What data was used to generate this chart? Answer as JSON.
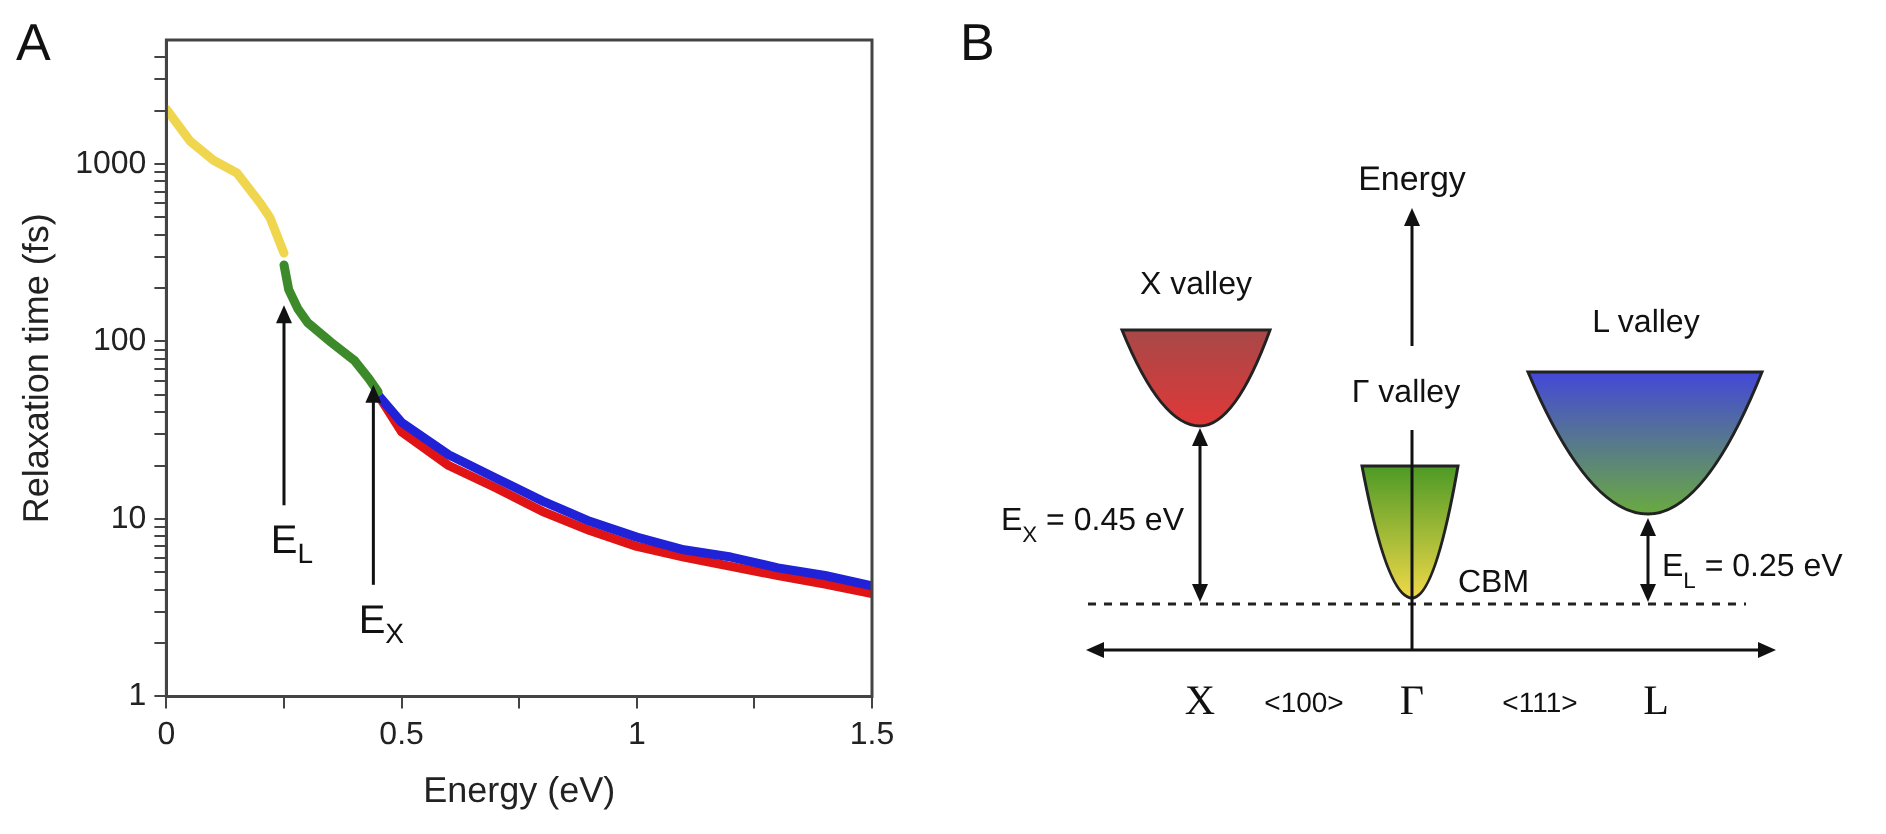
{
  "chart_data": [
    {
      "type": "line",
      "xlabel": "Energy (eV)",
      "ylabel": "Relaxation time (fs)",
      "log": "y",
      "grid": false,
      "legend": false,
      "xlim": [
        0,
        1.5
      ],
      "xticks": [
        0,
        {
          "value": 0.25,
          "label": null
        },
        0.5,
        {
          "value": 0.75,
          "label": null
        },
        1,
        {
          "value": 1.25,
          "label": null
        },
        1.5
      ],
      "ylim": [
        1,
        5000
      ],
      "yticks": [
        1,
        {
          "value": 2,
          "label": null
        },
        {
          "value": 3,
          "label": null
        },
        {
          "value": 4,
          "label": null
        },
        {
          "value": 5,
          "label": null
        },
        {
          "value": 6,
          "label": null
        },
        {
          "value": 7,
          "label": null
        },
        {
          "value": 8,
          "label": null
        },
        {
          "value": 9,
          "label": null
        },
        10,
        {
          "value": 20,
          "label": null
        },
        {
          "value": 30,
          "label": null
        },
        {
          "value": 40,
          "label": null
        },
        {
          "value": 50,
          "label": null
        },
        {
          "value": 60,
          "label": null
        },
        {
          "value": 70,
          "label": null
        },
        {
          "value": 80,
          "label": null
        },
        {
          "value": 90,
          "label": null
        },
        100,
        {
          "value": 200,
          "label": null
        },
        {
          "value": 300,
          "label": null
        },
        {
          "value": 400,
          "label": null
        },
        {
          "value": 500,
          "label": null
        },
        {
          "value": 600,
          "label": null
        },
        {
          "value": 700,
          "label": null
        },
        {
          "value": 800,
          "label": null
        },
        {
          "value": 900,
          "label": null
        },
        1000,
        {
          "value": 2000,
          "label": null
        },
        {
          "value": 3000,
          "label": null
        },
        {
          "value": 4000,
          "label": null
        }
      ],
      "series": [
        {
          "color": "#f0d54e",
          "x": [
            0,
            0.05,
            0.1,
            0.15,
            0.2,
            0.22,
            0.25
          ],
          "values": [
            2040,
            1350,
            1050,
            890,
            600,
            500,
            315
          ]
        },
        {
          "color": "#3d8a2b",
          "x": [
            0.25,
            0.26,
            0.28,
            0.3,
            0.35,
            0.4,
            0.43,
            0.45
          ],
          "values": [
            270,
            196,
            152,
            128,
            99,
            78,
            62,
            52
          ]
        },
        {
          "color": "#1f22d6",
          "x": [
            0.45,
            0.5,
            0.6,
            0.7,
            0.8,
            0.9,
            1.0,
            1.1,
            1.2,
            1.3,
            1.4,
            1.5
          ],
          "values": [
            50,
            35,
            23,
            17,
            12.6,
            9.7,
            7.9,
            6.7,
            6.1,
            5.3,
            4.8,
            4.2
          ]
        },
        {
          "color": "#e01414",
          "x": [
            0.45,
            0.5,
            0.6,
            0.7,
            0.8,
            0.9,
            1.0,
            1.1,
            1.2,
            1.3,
            1.4,
            1.5
          ],
          "values": [
            50,
            31,
            20,
            15,
            11,
            8.6,
            7.0,
            6.1,
            5.4,
            4.8,
            4.3,
            3.8
          ]
        }
      ],
      "annotations": [
        "A",
        {
          "text": "E$_{L}$",
          "x": 0.25,
          "y": 160
        },
        {
          "text": "E$_{X}$",
          "x": 0.44,
          "y": 57
        }
      ]
    },
    {
      "type": "other",
      "annotations": [
        "B",
        "Energy",
        "X valley",
        "Γ valley",
        "L valley",
        "E$_{X}$ = 0.45 eV",
        "E$_{L}$ = 0.25 eV",
        "CBM",
        "X",
        "<100>",
        "Γ",
        "<111>",
        "L"
      ]
    }
  ]
}
